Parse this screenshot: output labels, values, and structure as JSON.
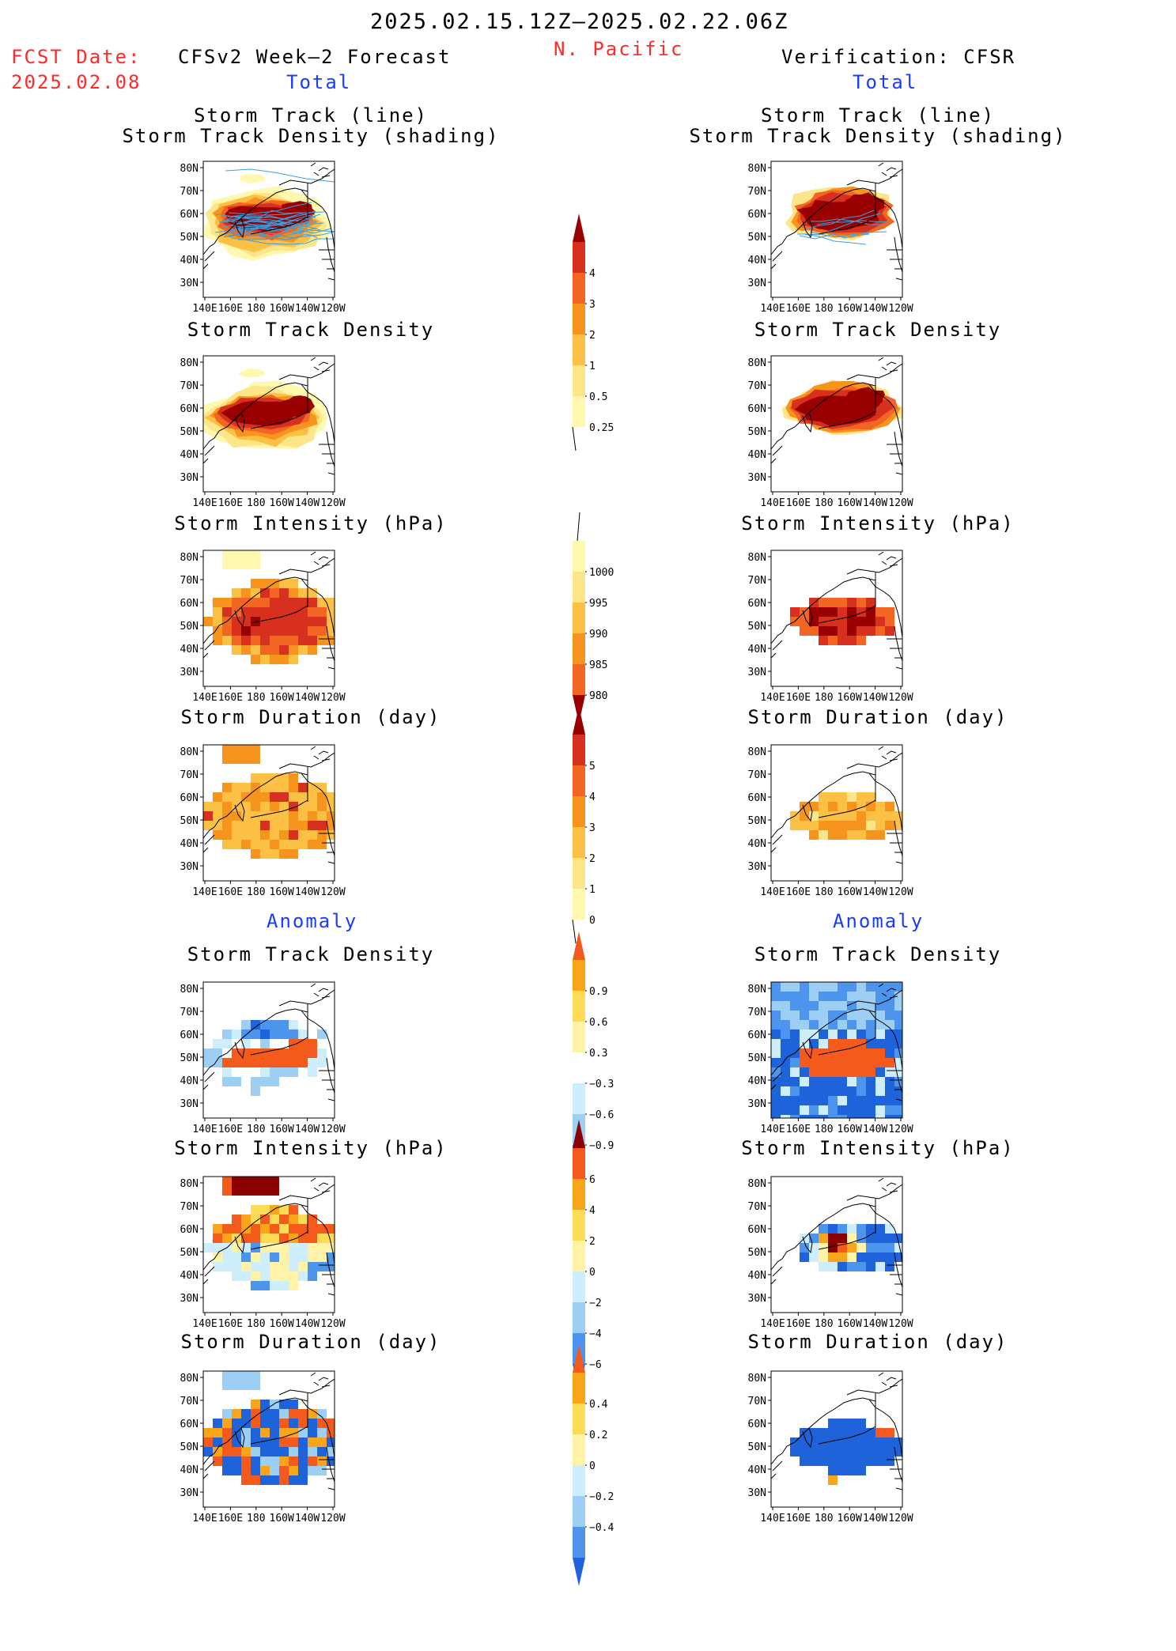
{
  "header": {
    "period": "2025.02.15.12Z—2025.02.22.06Z",
    "region": "N. Pacific",
    "fcst_label": "FCST Date:",
    "fcst_date": "2025.02.08",
    "left_title": "CFSv2 Week—2 Forecast",
    "right_title": "Verification: CFSR",
    "total_label": "Total",
    "anomaly_label": "Anomaly"
  },
  "panel_titles": {
    "track_line": "Storm Track (line)",
    "track_density_shading": "Storm Track Density (shading)",
    "track_density": "Storm Track Density",
    "intensity": "Storm Intensity (hPa)",
    "duration": "Storm Duration (day)"
  },
  "axis": {
    "lat_ticks": [
      "80N",
      "70N",
      "60N",
      "50N",
      "40N",
      "30N"
    ],
    "lon_ticks": [
      "140E",
      "160E",
      "180",
      "160W",
      "140W",
      "120W"
    ]
  },
  "colors": {
    "title_red": "#ff2a2a",
    "label_blue": "#1a3cff",
    "track_line": "#3aa0e0",
    "total_scale": [
      "#fff9b0",
      "#fde68a",
      "#fbc044",
      "#f7941d",
      "#f26522",
      "#d7301f",
      "#990000"
    ],
    "anom_scale": [
      "#1e63d9",
      "#4c94ec",
      "#9dcff5",
      "#cfeefc",
      "#ffffff",
      "#fff3a8",
      "#fddc55",
      "#f9a51a",
      "#f45a1c",
      "#8b0000"
    ]
  },
  "chart_data": [
    {
      "type": "heatmap",
      "panel": "forecast-total-storm-track",
      "title": "Storm Track (line)",
      "subtitle": "Storm Track Density (shading)",
      "field": "density",
      "pattern": "broad",
      "max": 4
    },
    {
      "type": "heatmap",
      "panel": "verification-total-storm-track",
      "title": "Storm Track (line)",
      "subtitle": "Storm Track Density (shading)",
      "field": "density",
      "pattern": "narrow",
      "max": 4
    },
    {
      "type": "heatmap",
      "panel": "forecast-total-density",
      "title": "Storm Track Density",
      "field": "density",
      "pattern": "broad",
      "max": 4
    },
    {
      "type": "heatmap",
      "panel": "verification-total-density",
      "title": "Storm Track Density",
      "field": "density",
      "pattern": "narrow",
      "max": 4
    },
    {
      "type": "heatmap",
      "panel": "forecast-total-intensity",
      "title": "Storm Intensity (hPa)",
      "field": "pressure",
      "pattern": "broad",
      "range": [
        980,
        1000
      ]
    },
    {
      "type": "heatmap",
      "panel": "verification-total-intensity",
      "title": "Storm Intensity (hPa)",
      "field": "pressure",
      "pattern": "narrow",
      "range": [
        980,
        1000
      ]
    },
    {
      "type": "heatmap",
      "panel": "forecast-total-duration",
      "title": "Storm Duration (day)",
      "field": "duration",
      "pattern": "broad",
      "range": [
        0,
        5
      ]
    },
    {
      "type": "heatmap",
      "panel": "verification-total-duration",
      "title": "Storm Duration (day)",
      "field": "duration",
      "pattern": "narrow",
      "range": [
        0,
        5
      ]
    },
    {
      "type": "heatmap",
      "panel": "forecast-anom-density",
      "title": "Storm Track Density",
      "field": "anomaly",
      "range": [
        -0.9,
        0.9
      ]
    },
    {
      "type": "heatmap",
      "panel": "verification-anom-density",
      "title": "Storm Track Density",
      "field": "anomaly",
      "range": [
        -0.9,
        0.9
      ]
    },
    {
      "type": "heatmap",
      "panel": "forecast-anom-intensity",
      "title": "Storm Intensity (hPa)",
      "field": "anomaly",
      "range": [
        -6,
        6
      ]
    },
    {
      "type": "heatmap",
      "panel": "verification-anom-intensity",
      "title": "Storm Intensity (hPa)",
      "field": "anomaly",
      "range": [
        -6,
        6
      ]
    },
    {
      "type": "heatmap",
      "panel": "forecast-anom-duration",
      "title": "Storm Duration (day)",
      "field": "anomaly",
      "range": [
        -0.4,
        0.4
      ]
    },
    {
      "type": "heatmap",
      "panel": "verification-anom-duration",
      "title": "Storm Duration (day)",
      "field": "anomaly",
      "range": [
        -0.4,
        0.4
      ]
    }
  ],
  "colorbars": {
    "density_total": {
      "labels": [
        "4",
        "3",
        "2",
        "1",
        "0.5",
        "0.25"
      ]
    },
    "intensity_total": {
      "labels": [
        "1000",
        "995",
        "990",
        "985",
        "980"
      ]
    },
    "duration_total": {
      "labels": [
        "5",
        "4",
        "3",
        "2",
        "1",
        "0"
      ]
    },
    "density_anom": {
      "labels": [
        "0.9",
        "0.6",
        "0.3",
        "−0.3",
        "−0.6",
        "−0.9"
      ]
    },
    "intensity_anom": {
      "labels": [
        "6",
        "4",
        "2",
        "0",
        "−2",
        "−4",
        "−6"
      ]
    },
    "duration_anom": {
      "labels": [
        "0.4",
        "0.2",
        "0",
        "−0.2",
        "−0.4"
      ]
    }
  }
}
